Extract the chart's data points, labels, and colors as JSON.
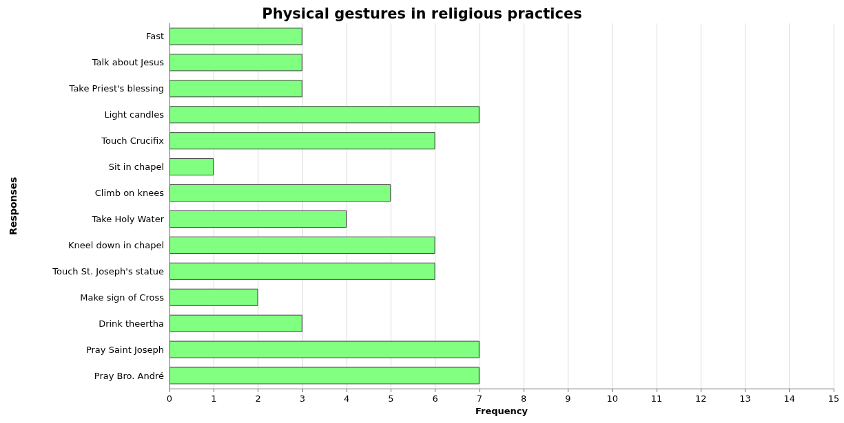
{
  "chart_data": {
    "type": "bar",
    "orientation": "horizontal",
    "title": "Physical gestures in religious practices",
    "xlabel": "Frequency",
    "ylabel": "Responses",
    "categories": [
      "Fast",
      "Talk about Jesus",
      "Take Priest's blessing",
      "Light candles",
      "Touch Crucifix",
      "Sit in chapel",
      "Climb on knees",
      "Take Holy Water",
      "Kneel down in chapel",
      "Touch St. Joseph's statue",
      "Make sign of Cross",
      "Drink theertha",
      "Pray Saint Joseph",
      "Pray Bro. André"
    ],
    "values": [
      3,
      3,
      3,
      7,
      6,
      1,
      5,
      4,
      6,
      6,
      2,
      3,
      7,
      7
    ],
    "color": "#80ff80",
    "xlim": [
      0,
      15
    ],
    "xticks": [
      0,
      1,
      2,
      3,
      4,
      5,
      6,
      7,
      8,
      9,
      10,
      11,
      12,
      13,
      14,
      15
    ],
    "grid": "x"
  }
}
